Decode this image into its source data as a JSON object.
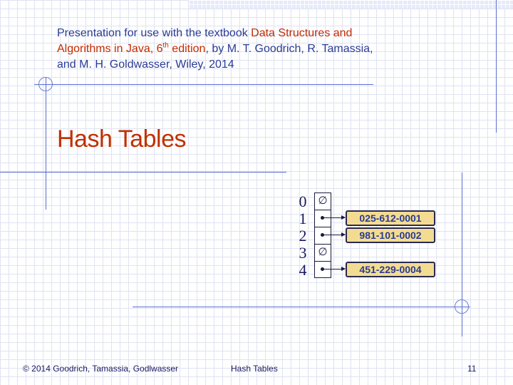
{
  "header": {
    "subtitle_prefix": "Presentation for use with the textbook ",
    "book_title_part1": "Data Structures and",
    "book_title_part2": "Algorithms in Java, 6",
    "edition_sup": "th",
    "edition_word": " edition",
    "subtitle_suffix": ", by M. T. Goodrich, R. Tamassia,",
    "subtitle_line3": "and M. H. Goldwasser, Wiley, 2014"
  },
  "title": "Hash Tables",
  "diagram": {
    "indices": [
      "0",
      "1",
      "2",
      "3",
      "4"
    ],
    "null_symbol": "∅",
    "entries": [
      {
        "bucket": 1,
        "value": "025-612-0001"
      },
      {
        "bucket": 2,
        "value": "981-101-0002"
      },
      {
        "bucket": 4,
        "value": "451-229-0004"
      }
    ]
  },
  "footer": {
    "copyright": "© 2014 Goodrich, Tamassia, Godlwasser",
    "topic": "Hash Tables",
    "page_number": "11"
  },
  "colors": {
    "title": "#bf3000",
    "highlight": "#c42a00",
    "body_text": "#2a3b94",
    "entry_fill": "#f3dc92"
  }
}
